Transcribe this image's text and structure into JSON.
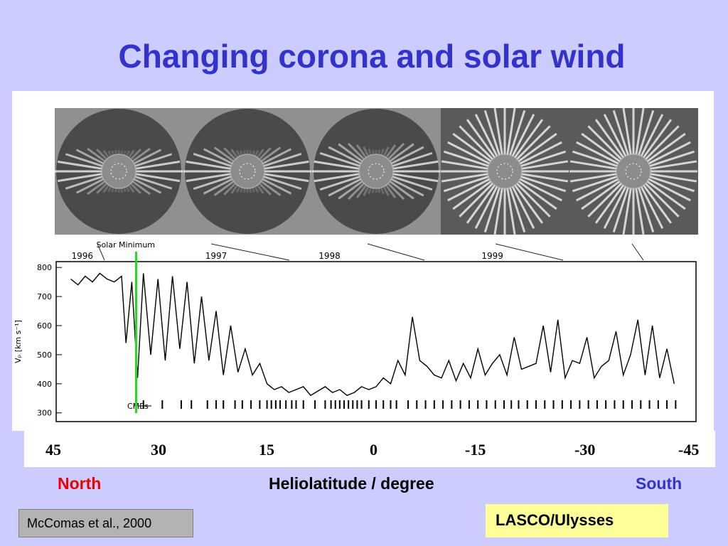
{
  "slide": {
    "title": "Changing corona and solar wind",
    "citation": "McComas et al., 2000",
    "source_tag": "LASCO/Ulysses"
  },
  "latitude_axis": {
    "ticks": [
      "45",
      "30",
      "15",
      "0",
      "-15",
      "-30",
      "-45"
    ],
    "north_label": "North",
    "south_label": "South",
    "title": "Heliolatitude / degree"
  },
  "coronagraph_images": [
    {
      "label": "1996"
    },
    {
      "label": "1997"
    },
    {
      "label": "1998"
    },
    {
      "label": "1999"
    }
  ],
  "colors": {
    "background": "#ccccff",
    "title": "#3333cc",
    "north": "#ee0000",
    "south": "#3333cc",
    "solar_minimum_marker": "#22dd22",
    "citation_box": "#b3b3b3",
    "source_box": "#ffff99"
  },
  "chart_data": {
    "type": "line",
    "ylabel": "Vₚ [km s⁻¹]",
    "ylim": [
      270,
      820
    ],
    "yticks": [
      300,
      400,
      500,
      600,
      700,
      800
    ],
    "xlim": [
      1995.9,
      2000.3
    ],
    "year_labels": [
      1996,
      1997,
      1998,
      1999
    ],
    "annotations": {
      "solar_minimum": "Solar Minimum",
      "cmes": "CMEs"
    },
    "solar_minimum_year": 1996.45,
    "series": [
      {
        "x": [
          1996.0,
          1996.05,
          1996.1,
          1996.15,
          1996.2,
          1996.25,
          1996.3,
          1996.35,
          1996.38,
          1996.42,
          1996.46,
          1996.5,
          1996.55,
          1996.6,
          1996.65,
          1996.7,
          1996.75,
          1996.8,
          1996.85,
          1996.9,
          1996.95,
          1997.0,
          1997.05,
          1997.1,
          1997.15,
          1997.2,
          1997.25,
          1997.3,
          1997.35,
          1997.4,
          1997.45,
          1997.5,
          1997.55,
          1997.6,
          1997.65,
          1997.7,
          1997.75,
          1997.8,
          1997.85,
          1997.9,
          1997.95,
          1998.0,
          1998.05,
          1998.1,
          1998.15,
          1998.2,
          1998.25,
          1998.3,
          1998.35,
          1998.4,
          1998.45,
          1998.5,
          1998.55,
          1998.6,
          1998.65,
          1998.7,
          1998.75,
          1998.8,
          1998.85,
          1998.9,
          1998.95,
          1999.0,
          1999.05,
          1999.1,
          1999.15,
          1999.2,
          1999.25,
          1999.3,
          1999.35,
          1999.4,
          1999.45,
          1999.5,
          1999.55,
          1999.6,
          1999.65,
          1999.7,
          1999.75,
          1999.8,
          1999.85,
          1999.9,
          1999.95,
          2000.0,
          2000.05,
          2000.1,
          2000.15
        ],
        "values": [
          760,
          740,
          770,
          750,
          780,
          760,
          750,
          770,
          540,
          750,
          420,
          780,
          500,
          760,
          480,
          770,
          520,
          750,
          470,
          700,
          480,
          650,
          430,
          600,
          440,
          520,
          430,
          470,
          400,
          380,
          390,
          370,
          380,
          390,
          360,
          375,
          390,
          370,
          380,
          360,
          370,
          390,
          380,
          390,
          420,
          400,
          480,
          430,
          630,
          480,
          460,
          430,
          420,
          480,
          410,
          470,
          420,
          520,
          430,
          470,
          500,
          430,
          560,
          450,
          460,
          470,
          600,
          440,
          620,
          420,
          480,
          470,
          560,
          420,
          460,
          480,
          580,
          430,
          500,
          620,
          430,
          600,
          420,
          520,
          400
        ]
      }
    ],
    "cme_times": [
      1996.5,
      1996.63,
      1996.76,
      1996.83,
      1996.94,
      1997.0,
      1997.05,
      1997.13,
      1997.18,
      1997.24,
      1997.3,
      1997.35,
      1997.38,
      1997.41,
      1997.44,
      1997.48,
      1997.52,
      1997.55,
      1997.6,
      1997.68,
      1997.75,
      1997.79,
      1997.82,
      1997.85,
      1997.88,
      1997.91,
      1997.94,
      1997.97,
      1998.0,
      1998.05,
      1998.1,
      1998.15,
      1998.2,
      1998.24,
      1998.32,
      1998.38,
      1998.44,
      1998.5,
      1998.56,
      1998.62,
      1998.68,
      1998.74,
      1998.8,
      1998.86,
      1998.92,
      1998.98,
      1999.03,
      1999.08,
      1999.14,
      1999.2,
      1999.26,
      1999.32,
      1999.38,
      1999.44,
      1999.5,
      1999.56,
      1999.62,
      1999.68,
      1999.74,
      1999.8,
      1999.86,
      1999.92,
      1999.98,
      2000.04,
      2000.1,
      2000.16
    ]
  }
}
